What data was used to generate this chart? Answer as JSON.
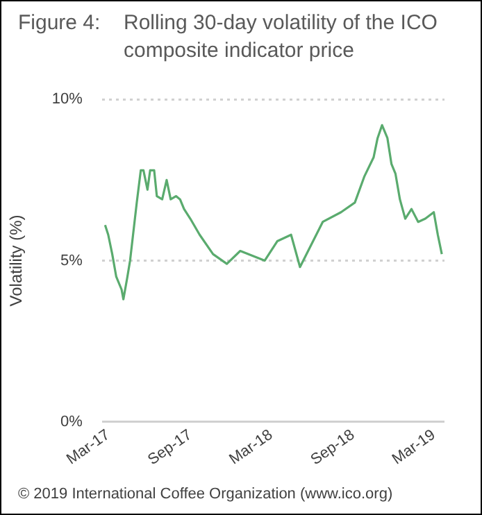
{
  "chart_data": {
    "type": "line",
    "title": "Rolling 30-day volatility of the ICO composite indicator price",
    "ylabel": "Volatility (%)",
    "annotations": [
      "Figure 4:",
      "© 2019 International Coffee Organization (www.ico.org)"
    ],
    "x": [
      "2017-02-22",
      "2017-03-01",
      "2017-03-10",
      "2017-03-19",
      "2017-03-31",
      "2017-04-04",
      "2017-04-13",
      "2017-04-19",
      "2017-05-04",
      "2017-05-13",
      "2017-05-19",
      "2017-05-28",
      "2017-06-03",
      "2017-06-12",
      "2017-06-18",
      "2017-06-30",
      "2017-07-10",
      "2017-07-19",
      "2017-07-31",
      "2017-08-09",
      "2017-08-18",
      "2017-09-01",
      "2017-09-22",
      "2017-10-22",
      "2017-11-22",
      "2017-12-22",
      "2018-02-15",
      "2018-03-15",
      "2018-04-15",
      "2018-05-05",
      "2018-06-25",
      "2018-08-05",
      "2018-09-05",
      "2018-09-26",
      "2018-10-17",
      "2018-10-26",
      "2018-11-05",
      "2018-11-17",
      "2018-11-26",
      "2018-12-05",
      "2018-12-15",
      "2018-12-27",
      "2019-01-10",
      "2019-01-25",
      "2019-02-10",
      "2019-03-01",
      "2019-03-10",
      "2019-03-19"
    ],
    "series": [
      {
        "color": "#5aab6e",
        "values": [
          6.1,
          5.8,
          5.2,
          4.5,
          4.1,
          3.8,
          4.5,
          5.0,
          6.8,
          7.8,
          7.8,
          7.2,
          7.8,
          7.8,
          7.0,
          6.9,
          7.5,
          6.9,
          7.0,
          6.9,
          6.6,
          6.3,
          5.8,
          5.2,
          4.9,
          5.3,
          5.0,
          5.6,
          5.8,
          4.8,
          6.2,
          6.5,
          6.8,
          7.6,
          8.2,
          8.8,
          9.2,
          8.8,
          8.0,
          7.7,
          6.9,
          6.3,
          6.6,
          6.2,
          6.3,
          6.5,
          5.8,
          5.2
        ]
      }
    ],
    "xlim": [
      "2017-02-15",
      "2019-03-25"
    ],
    "xticks": [
      {
        "value": "2017-03-01",
        "label": "Mar-17"
      },
      {
        "value": "2017-09-01",
        "label": "Sep-17"
      },
      {
        "value": "2018-03-01",
        "label": "Mar-18"
      },
      {
        "value": "2018-09-01",
        "label": "Sep-18"
      },
      {
        "value": "2019-03-01",
        "label": "Mar-19"
      }
    ],
    "ylim": [
      0,
      10
    ],
    "yticks": [
      {
        "value": 0,
        "label": "0%"
      },
      {
        "value": 5,
        "label": "5%"
      },
      {
        "value": 10,
        "label": "10%"
      }
    ],
    "grid": "y",
    "legend": false,
    "marker": "none",
    "line_style": "solid"
  }
}
